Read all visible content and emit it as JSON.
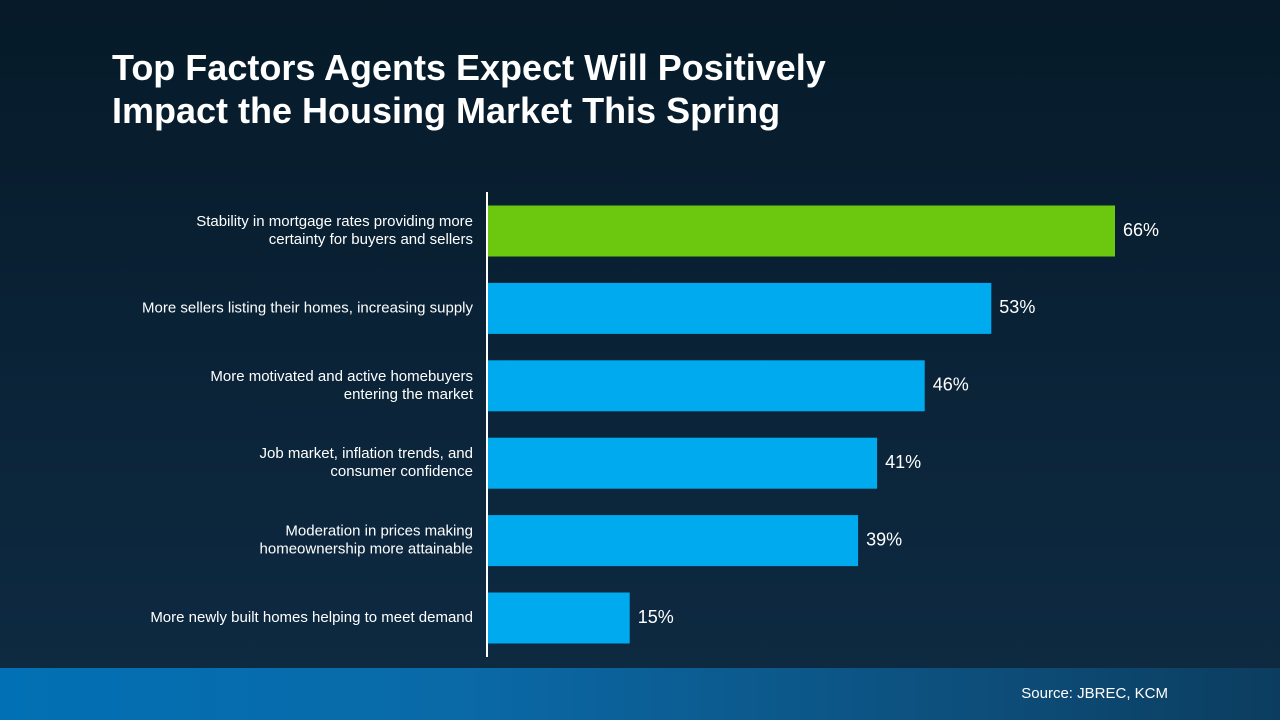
{
  "title_lines": [
    "Top Factors Agents Expect Will Positively",
    "Impact the Housing Market This Spring"
  ],
  "source": "Source: JBREC, KCM",
  "colors": {
    "highlight": "#6cc70f",
    "bar": "#00aaee",
    "axis": "#ffffff",
    "label": "#ffffff"
  },
  "chart_data": {
    "type": "bar",
    "orientation": "horizontal",
    "categories": [
      [
        "Stability in mortgage rates providing more",
        "certainty for buyers and sellers"
      ],
      [
        "More sellers listing their homes, increasing supply"
      ],
      [
        "More motivated and active homebuyers",
        "entering the market"
      ],
      [
        "Job market, inflation trends, and",
        "consumer confidence"
      ],
      [
        "Moderation in prices making",
        "homeownership more attainable"
      ],
      [
        "More newly built homes helping to meet demand"
      ]
    ],
    "values": [
      66,
      53,
      46,
      41,
      39,
      15
    ],
    "data_labels": [
      "66%",
      "53%",
      "46%",
      "41%",
      "39%",
      "15%"
    ],
    "highlight_index": 0,
    "xlim": [
      0,
      100
    ],
    "grid": false,
    "legend": "none"
  }
}
